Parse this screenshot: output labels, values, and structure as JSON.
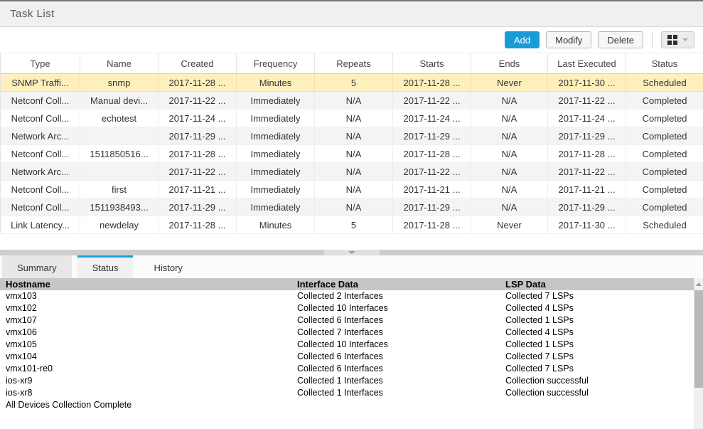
{
  "panel": {
    "title": "Task List"
  },
  "toolbar": {
    "add_label": "Add",
    "modify_label": "Modify",
    "delete_label": "Delete",
    "layout_button_icon": "grid-icon",
    "layout_chevron_icon": "chevron-down-icon"
  },
  "colors": {
    "accent_blue": "#199bd7",
    "selected_row_bg": "#fdf0bd",
    "tab_active_border": "#1ba0e2",
    "lower_header_bg": "#c6c6c6",
    "titlebar_bg": "#f0f0f0"
  },
  "task_table": {
    "columns": [
      "Type",
      "Name",
      "Created",
      "Frequency",
      "Repeats",
      "Starts",
      "Ends",
      "Last Executed",
      "Status"
    ],
    "selected_row_index": 0,
    "rows": [
      [
        "SNMP Traffi...",
        "snmp",
        "2017-11-28 ...",
        "Minutes",
        "5",
        "2017-11-28 ...",
        "Never",
        "2017-11-30 ...",
        "Scheduled"
      ],
      [
        "Netconf Coll...",
        "Manual devi...",
        "2017-11-22 ...",
        "Immediately",
        "N/A",
        "2017-11-22 ...",
        "N/A",
        "2017-11-22 ...",
        "Completed"
      ],
      [
        "Netconf Coll...",
        "echotest",
        "2017-11-24 ...",
        "Immediately",
        "N/A",
        "2017-11-24 ...",
        "N/A",
        "2017-11-24 ...",
        "Completed"
      ],
      [
        "Network Arc...",
        "",
        "2017-11-29 ...",
        "Immediately",
        "N/A",
        "2017-11-29 ...",
        "N/A",
        "2017-11-29 ...",
        "Completed"
      ],
      [
        "Netconf Coll...",
        "1511850516...",
        "2017-11-28 ...",
        "Immediately",
        "N/A",
        "2017-11-28 ...",
        "N/A",
        "2017-11-28 ...",
        "Completed"
      ],
      [
        "Network Arc...",
        "",
        "2017-11-22 ...",
        "Immediately",
        "N/A",
        "2017-11-22 ...",
        "N/A",
        "2017-11-22 ...",
        "Completed"
      ],
      [
        "Netconf Coll...",
        "first",
        "2017-11-21 ...",
        "Immediately",
        "N/A",
        "2017-11-21 ...",
        "N/A",
        "2017-11-21 ...",
        "Completed"
      ],
      [
        "Netconf Coll...",
        "1511938493...",
        "2017-11-29 ...",
        "Immediately",
        "N/A",
        "2017-11-29 ...",
        "N/A",
        "2017-11-29 ...",
        "Completed"
      ],
      [
        "Link Latency...",
        "newdelay",
        "2017-11-28 ...",
        "Minutes",
        "5",
        "2017-11-28 ...",
        "Never",
        "2017-11-30 ...",
        "Scheduled"
      ]
    ]
  },
  "tabs": [
    {
      "label": "Summary",
      "active": false
    },
    {
      "label": "Status",
      "active": true
    },
    {
      "label": "History",
      "active": false
    }
  ],
  "status_table": {
    "columns": [
      "Hostname",
      "Interface Data",
      "LSP Data"
    ],
    "rows": [
      [
        "vmx103",
        "Collected 2 Interfaces",
        "Collected 7 LSPs"
      ],
      [
        "vmx102",
        "Collected 10 Interfaces",
        "Collected 4 LSPs"
      ],
      [
        "vmx107",
        "Collected 6 Interfaces",
        "Collected 1 LSPs"
      ],
      [
        "vmx106",
        "Collected 7 Interfaces",
        "Collected 4 LSPs"
      ],
      [
        "vmx105",
        "Collected 10 Interfaces",
        "Collected 1 LSPs"
      ],
      [
        "vmx104",
        "Collected 6 Interfaces",
        "Collected 7 LSPs"
      ],
      [
        "vmx101-re0",
        "Collected 6 Interfaces",
        "Collected 7 LSPs"
      ],
      [
        "ios-xr9",
        "Collected 1 Interfaces",
        "Collection successful"
      ],
      [
        "ios-xr8",
        "Collected 1 Interfaces",
        "Collection successful"
      ]
    ],
    "footer": "All Devices Collection Complete"
  },
  "icons": {
    "layout": "grid-icon",
    "layout_dropdown": "chevron-down-icon",
    "splitter_collapse": "chevron-down-icon",
    "scrollbar_up": "triangle-up-icon"
  }
}
